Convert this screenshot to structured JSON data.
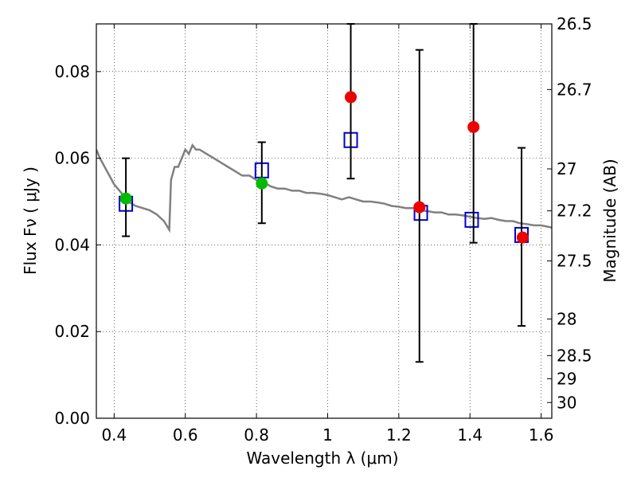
{
  "chart_data": {
    "type": "scatter",
    "xlabel": "Wavelength  λ (μm)",
    "ylabel": "Flux  Fν  ( μJy )",
    "y2label": "Magnitude (AB)",
    "xlim": [
      0.35,
      1.63
    ],
    "ylim": [
      0.0,
      0.091
    ],
    "grid": true,
    "x_ticks": [
      "0.4",
      "0.6",
      "0.8",
      "1",
      "1.2",
      "1.4",
      "1.6"
    ],
    "y_ticks": [
      "0.00",
      "0.02",
      "0.04",
      "0.06",
      "0.08"
    ],
    "y2_ticks": [
      "26.5",
      "26.7",
      "27",
      "27.2",
      "27.5",
      "28",
      "28.5",
      "29",
      "30"
    ],
    "colors": {
      "model": "#808080",
      "model_photometry": "#0000cc",
      "detection": "#00bb00",
      "upper_limit": "#ee0000",
      "error_bar": "#000000"
    },
    "series": [
      {
        "kind": "line",
        "x": [
          0.35,
          0.36,
          0.38,
          0.4,
          0.42,
          0.44,
          0.46,
          0.48,
          0.5,
          0.52,
          0.54,
          0.555,
          0.56,
          0.57,
          0.58,
          0.59,
          0.6,
          0.61,
          0.62,
          0.63,
          0.64,
          0.66,
          0.68,
          0.7,
          0.72,
          0.74,
          0.76,
          0.78,
          0.8,
          0.82,
          0.84,
          0.86,
          0.88,
          0.9,
          0.92,
          0.94,
          0.96,
          0.98,
          1.0,
          1.02,
          1.04,
          1.06,
          1.08,
          1.1,
          1.12,
          1.14,
          1.16,
          1.18,
          1.2,
          1.22,
          1.24,
          1.26,
          1.28,
          1.3,
          1.32,
          1.34,
          1.36,
          1.38,
          1.4,
          1.42,
          1.44,
          1.46,
          1.48,
          1.5,
          1.52,
          1.54,
          1.56,
          1.58,
          1.6,
          1.63
        ],
        "y": [
          0.062,
          0.06,
          0.057,
          0.054,
          0.052,
          0.05,
          0.049,
          0.0485,
          0.048,
          0.047,
          0.0455,
          0.0435,
          0.055,
          0.058,
          0.058,
          0.06,
          0.062,
          0.061,
          0.063,
          0.062,
          0.062,
          0.061,
          0.06,
          0.059,
          0.058,
          0.057,
          0.056,
          0.056,
          0.055,
          0.0545,
          0.0535,
          0.053,
          0.053,
          0.0525,
          0.0525,
          0.052,
          0.052,
          0.0518,
          0.0515,
          0.051,
          0.0505,
          0.051,
          0.0505,
          0.05,
          0.05,
          0.0498,
          0.0495,
          0.049,
          0.0488,
          0.0485,
          0.0485,
          0.048,
          0.0478,
          0.0475,
          0.0475,
          0.047,
          0.047,
          0.0468,
          0.0465,
          0.0462,
          0.046,
          0.0462,
          0.0458,
          0.0455,
          0.0455,
          0.045,
          0.0448,
          0.0445,
          0.0445,
          0.044
        ]
      },
      {
        "kind": "squares",
        "x": [
          0.433,
          0.815,
          1.065,
          1.262,
          1.405,
          1.545
        ],
        "y": [
          0.0495,
          0.0572,
          0.0642,
          0.0474,
          0.0458,
          0.0423
        ]
      },
      {
        "kind": "points",
        "x": [
          0.433,
          0.815
        ],
        "y": [
          0.0507,
          0.0542
        ]
      },
      {
        "kind": "points",
        "x": [
          1.065,
          1.258,
          1.41,
          1.548
        ],
        "y": [
          0.0741,
          0.0487,
          0.0672,
          0.0417
        ]
      },
      {
        "kind": "errorbars",
        "x": [
          0.433,
          0.815,
          1.065,
          1.258,
          1.41,
          1.545
        ],
        "y": [
          0.0507,
          0.0542,
          0.0741,
          0.0487,
          0.0672,
          0.0417
        ],
        "low": [
          0.042,
          0.045,
          0.0553,
          0.013,
          0.0405,
          0.0213
        ],
        "high": [
          0.06,
          0.0637,
          0.091,
          0.085,
          0.091,
          0.0624
        ]
      }
    ]
  }
}
